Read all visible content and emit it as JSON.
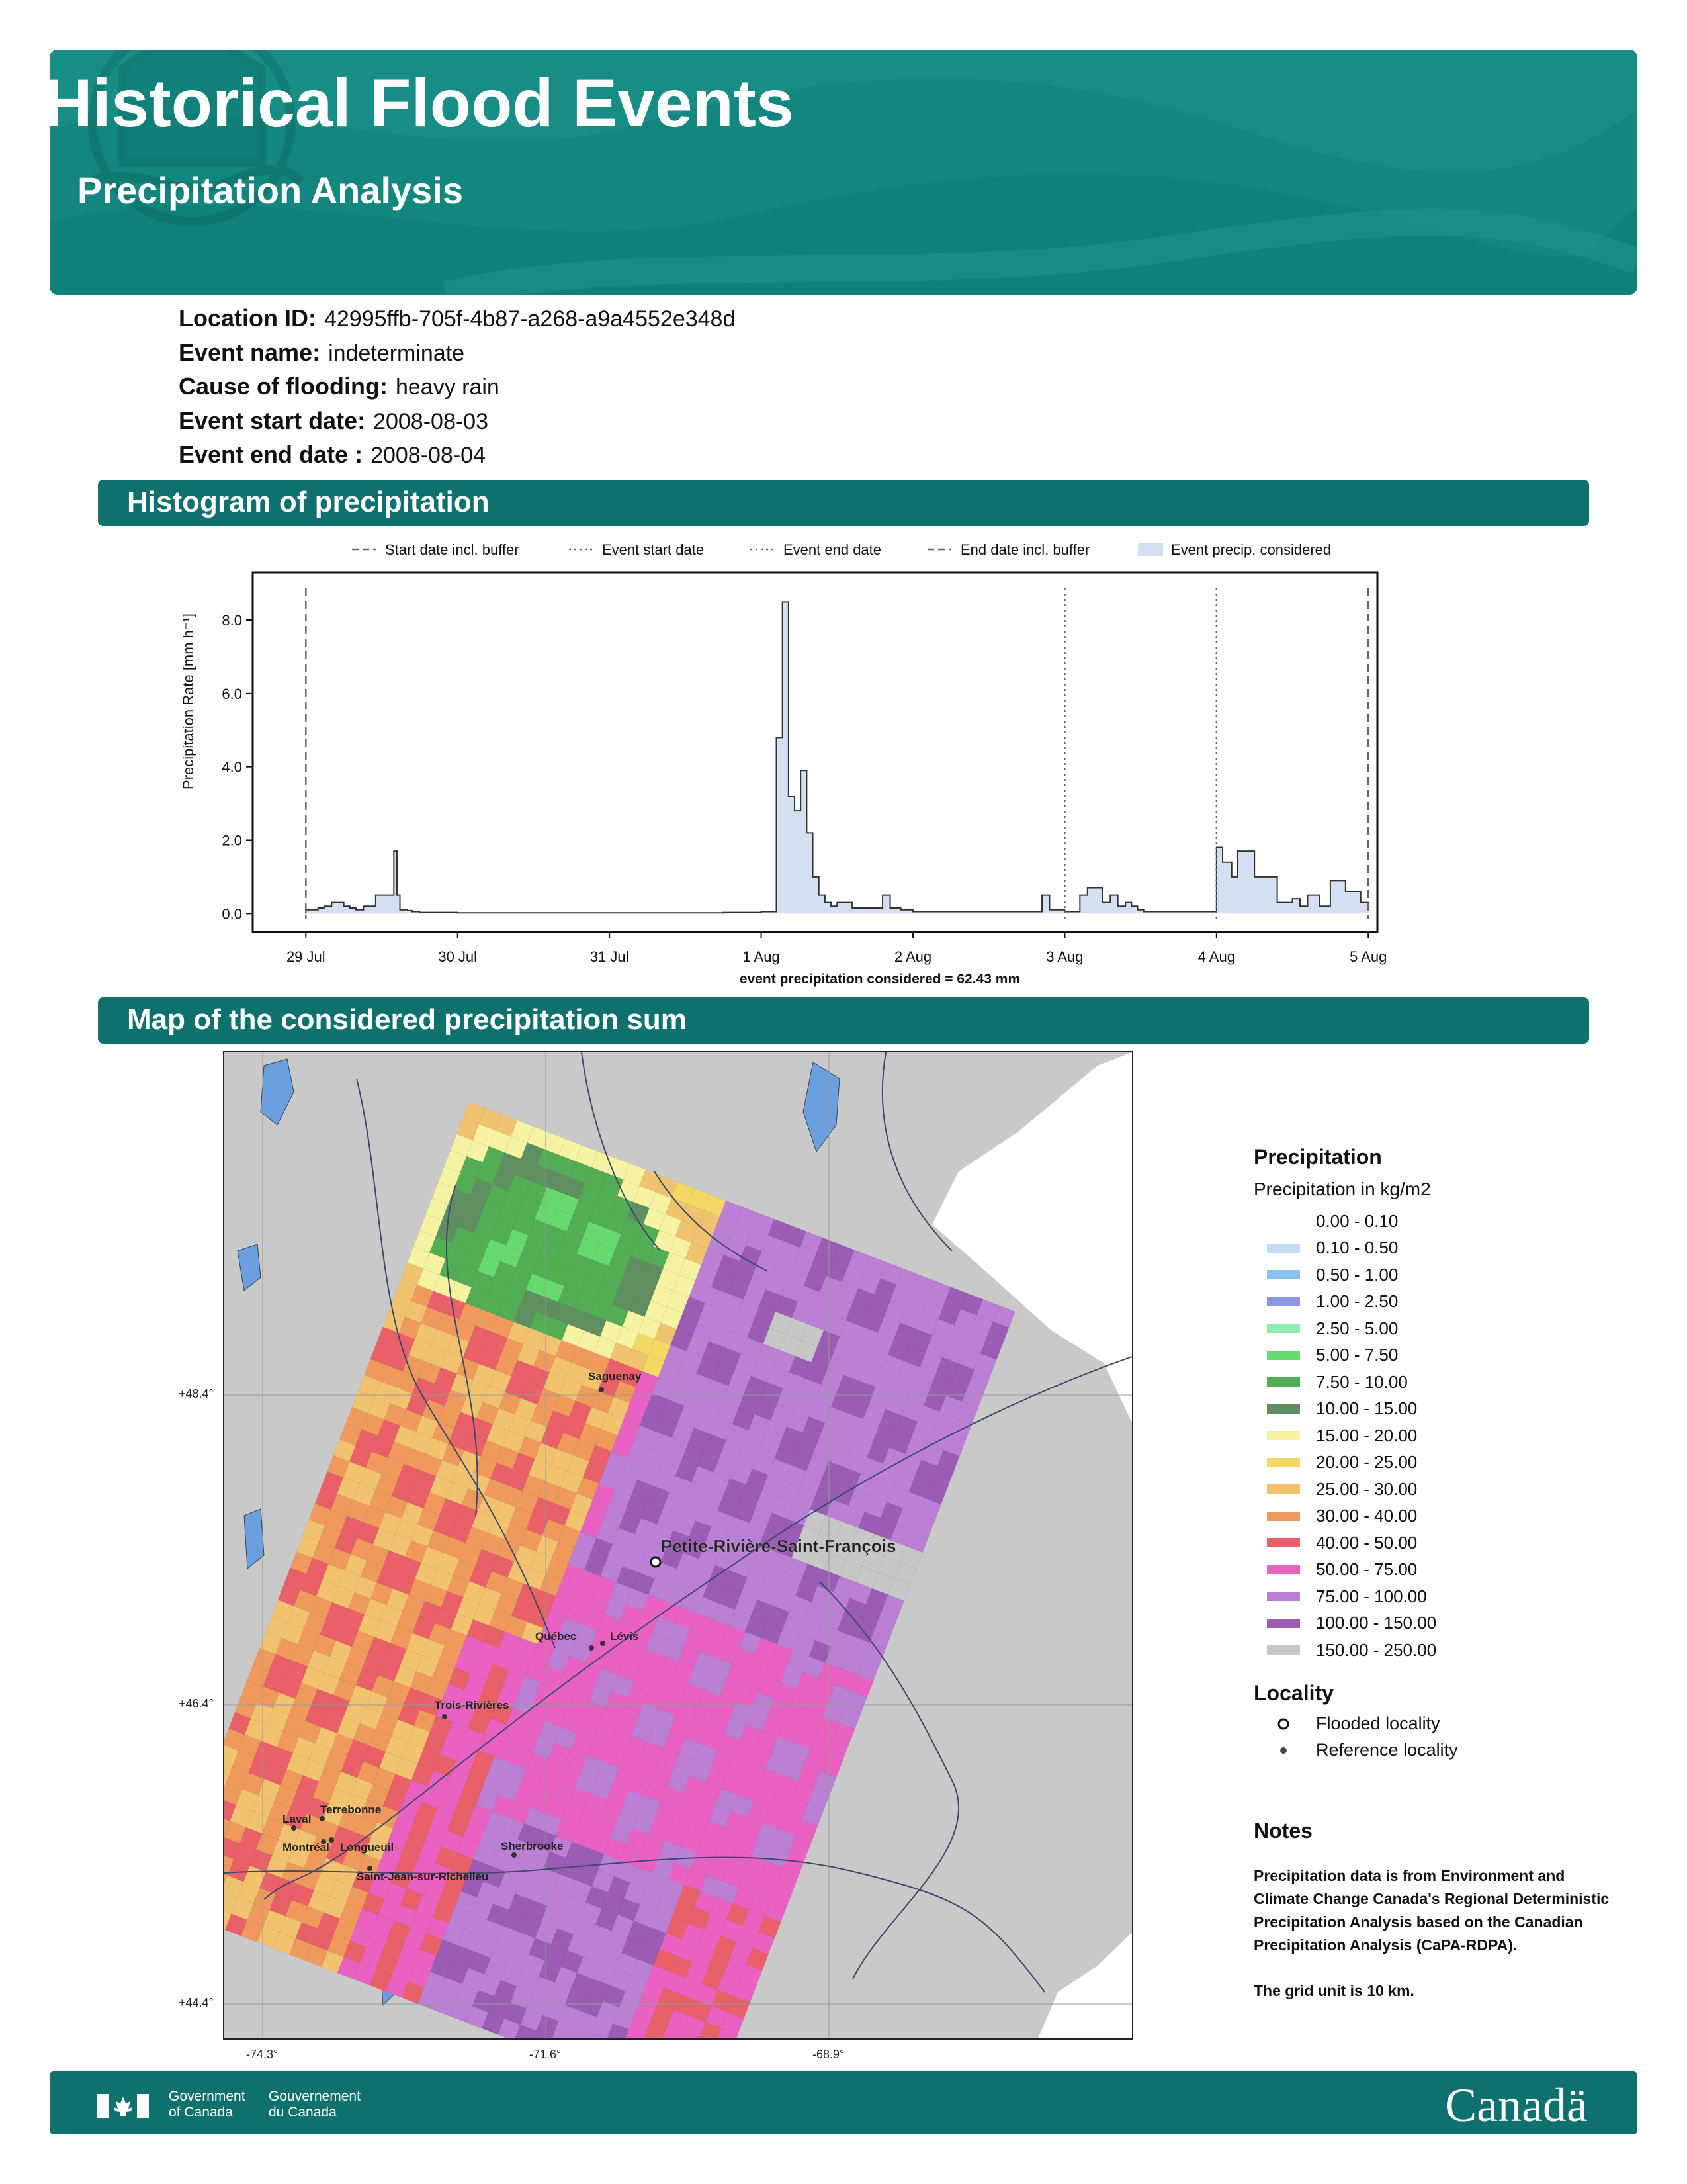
{
  "header": {
    "title": "Historical Flood Events",
    "subtitle": "Precipitation Analysis"
  },
  "info": [
    {
      "label": "Location ID:",
      "value": "42995ffb-705f-4b87-a268-a9a4552e348d"
    },
    {
      "label": "Event name:",
      "value": "indeterminate"
    },
    {
      "label": "Cause of flooding:",
      "value": "heavy rain"
    },
    {
      "label": "Event start date:",
      "value": "2008-08-03"
    },
    {
      "label": "Event end date :",
      "value": "2008-08-04"
    }
  ],
  "sections": {
    "histogram": "Histogram of precipitation",
    "map": "Map of the considered precipitation sum"
  },
  "colors": {
    "header_bg": "#13877f",
    "section_bg": "#0e716e",
    "bar_fill": "#d4e0f1",
    "bar_edge": "#333333"
  },
  "chart_data": {
    "type": "area",
    "legend": [
      "Start date incl. buffer",
      "Event start date",
      "Event end date",
      "End date incl. buffer",
      "Event precip. considered"
    ],
    "ylabel": "Precipitation Rate [mm h⁻¹]",
    "ylim": [
      -0.5,
      9.3
    ],
    "yticks": [
      "0.0",
      "2.0",
      "4.0",
      "6.0",
      "8.0"
    ],
    "xticks": [
      "29 Jul",
      "30 Jul",
      "31 Jul",
      "1 Aug",
      "2 Aug",
      "3 Aug",
      "4 Aug",
      "5 Aug"
    ],
    "xlim_days": [
      -0.35,
      7.06
    ],
    "vlines": [
      {
        "label": "Start date incl. buffer",
        "day": 0,
        "style": "dashed"
      },
      {
        "label": "Event start date",
        "day": 5,
        "style": "dotted"
      },
      {
        "label": "Event end date",
        "day": 6,
        "style": "dotted"
      },
      {
        "label": "End date incl. buffer",
        "day": 7,
        "style": "dashed"
      }
    ],
    "annotation": "event precipitation considered = 62.43 mm",
    "segments_start_day": [
      0,
      0.08,
      0.12,
      0.17,
      0.25,
      0.29,
      0.33,
      0.38,
      0.46,
      0.58,
      0.6,
      0.62,
      0.67,
      0.7,
      0.75,
      1.0,
      1.5,
      2.0,
      2.5,
      2.75,
      3.0,
      3.25,
      3.33,
      3.37,
      3.42,
      3.46,
      3.5,
      3.6,
      3.7,
      3.8,
      3.85,
      3.92,
      4.0,
      4.2,
      4.5,
      4.85,
      4.9,
      5.0,
      5.1,
      5.15,
      5.25,
      5.3,
      5.35,
      5.4,
      5.44,
      5.48,
      5.52,
      5.6,
      5.7,
      5.75,
      5.85,
      6.0,
      6.04,
      6.1,
      6.14,
      6.25,
      6.4,
      6.5,
      6.55,
      6.6,
      6.68,
      6.75,
      6.85,
      6.95,
      7.0
    ],
    "segments_values": [
      0.1,
      0.15,
      0.2,
      0.3,
      0.2,
      0.15,
      0.1,
      0.2,
      0.5,
      1.7,
      0.5,
      0.1,
      0.08,
      0.05,
      0.03,
      0.02,
      0.02,
      0.02,
      0.02,
      0.03,
      0.05,
      0.5,
      1.0,
      2.0,
      1.5,
      0.6,
      0.3,
      0.15,
      0.15,
      0.5,
      0.15,
      0.1,
      0.05,
      0.05,
      0.05,
      0.5,
      0.1,
      0.05,
      0.5,
      0.7,
      0.3,
      0.5,
      0.2,
      0.3,
      0.2,
      0.1,
      0.05,
      0.05,
      0.05,
      0.05,
      0.05,
      1.8,
      1.4,
      1.0,
      1.7,
      1.0,
      0.3,
      0.4,
      0.2,
      0.5,
      0.2,
      0.9,
      0.6,
      0.3,
      0.1
    ],
    "spike_days": [
      3.1,
      3.14,
      3.18,
      3.22,
      3.26,
      3.3,
      3.34,
      3.38,
      3.42,
      3.46
    ],
    "spike_values": [
      4.8,
      8.5,
      3.2,
      2.8,
      3.9,
      2.2,
      1.0,
      0.5,
      0.3,
      0.2
    ]
  },
  "map": {
    "places": [
      {
        "name": "Saguenay",
        "type": "reference"
      },
      {
        "name": "Petite-Rivière-Saint-François",
        "type": "flooded"
      },
      {
        "name": "Québec",
        "type": "reference"
      },
      {
        "name": "Lévis",
        "type": "reference"
      },
      {
        "name": "Trois-Rivières",
        "type": "reference"
      },
      {
        "name": "Terrebonne",
        "type": "reference"
      },
      {
        "name": "Laval",
        "type": "reference"
      },
      {
        "name": "Montréal",
        "type": "reference"
      },
      {
        "name": "Longueuil",
        "type": "reference"
      },
      {
        "name": "Sherbrooke",
        "type": "reference"
      },
      {
        "name": "Saint-Jean-sur-Richelieu",
        "type": "reference"
      }
    ],
    "lat_labels": [
      "+48.4°",
      "+46.4°",
      "+44.4°"
    ],
    "lon_labels": [
      "-74.3°",
      "-71.6°",
      "-68.9°"
    ]
  },
  "legend": {
    "title": "Precipitation",
    "subtitle": "Precipitation in kg/m2",
    "classes": [
      {
        "label": "0.00 - 0.10",
        "color": "#ffffff"
      },
      {
        "label": "0.10 - 0.50",
        "color": "#c2dcf4"
      },
      {
        "label": "0.50 - 1.00",
        "color": "#8cc0ee"
      },
      {
        "label": "1.00 - 2.50",
        "color": "#8c96e6"
      },
      {
        "label": "2.50 - 5.00",
        "color": "#90ebb0"
      },
      {
        "label": "5.00 - 7.50",
        "color": "#66d96f"
      },
      {
        "label": "7.50 - 10.00",
        "color": "#53ad55"
      },
      {
        "label": "10.00 - 15.00",
        "color": "#5f8f60"
      },
      {
        "label": "15.00 - 20.00",
        "color": "#f6f3a3"
      },
      {
        "label": "20.00 - 25.00",
        "color": "#f3d866"
      },
      {
        "label": "25.00 - 30.00",
        "color": "#f2c36e"
      },
      {
        "label": "30.00 - 40.00",
        "color": "#ef9a5c"
      },
      {
        "label": "40.00 - 50.00",
        "color": "#e96068"
      },
      {
        "label": "50.00 - 75.00",
        "color": "#ea62c1"
      },
      {
        "label": "75.00 - 100.00",
        "color": "#bb7fd6"
      },
      {
        "label": "100.00 - 150.00",
        "color": "#9a5cb5"
      },
      {
        "label": "150.00 - 250.00",
        "color": "#c7c7c7"
      }
    ],
    "locality_title": "Locality",
    "flooded": "Flooded locality",
    "reference": "Reference locality"
  },
  "notes": {
    "title": "Notes",
    "text": "Precipitation data is from Environment and Climate Change Canada's Regional Deterministic Precipitation Analysis based on the Canadian Precipitation Analysis (CaPA-RDPA).",
    "grid": "The grid unit is 10 km."
  },
  "footer": {
    "gov_en_1": "Government",
    "gov_en_2": "of Canada",
    "gov_fr_1": "Gouvernement",
    "gov_fr_2": "du Canada",
    "wordmark": "Canadä"
  }
}
